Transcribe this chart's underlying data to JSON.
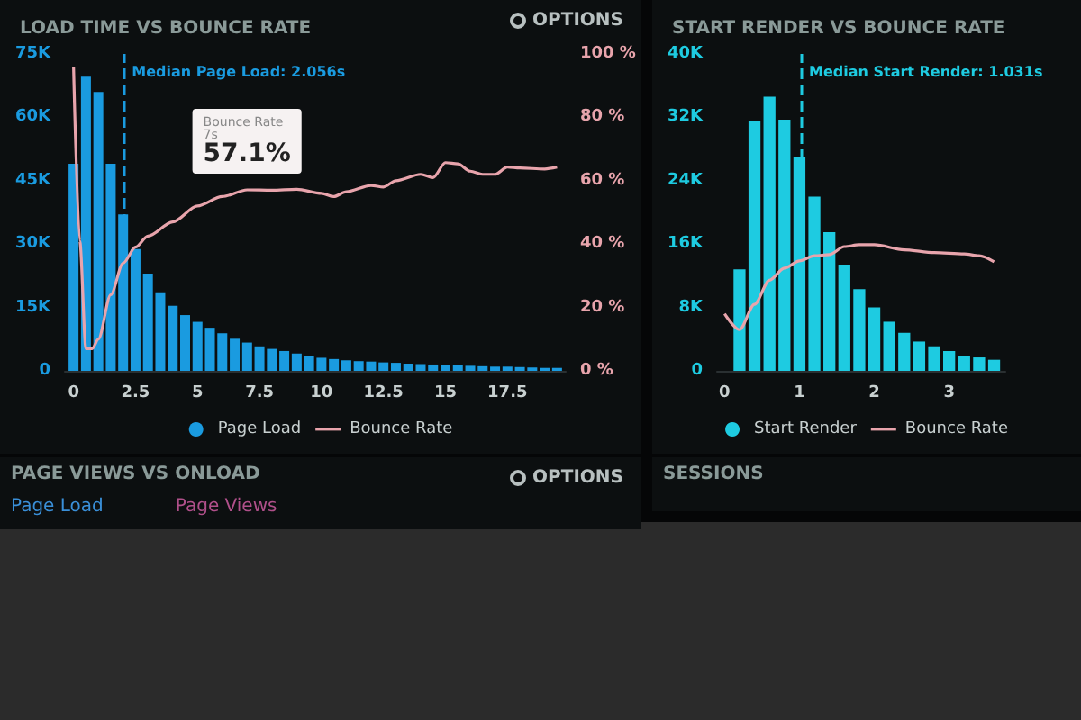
{
  "chart_data": [
    {
      "type": "bar",
      "title": "LOAD TIME VS BOUNCE RATE",
      "x": [
        0,
        0.5,
        1,
        1.5,
        2,
        2.5,
        3,
        3.5,
        4,
        4.5,
        5,
        5.5,
        6,
        6.5,
        7,
        7.5,
        8,
        8.5,
        9,
        9.5,
        10,
        10.5,
        11,
        11.5,
        12,
        12.5,
        13,
        13.5,
        14,
        14.5,
        15,
        15.5,
        16,
        16.5,
        17,
        17.5,
        18,
        18.5,
        19,
        19.5
      ],
      "series": [
        {
          "name": "Page Load",
          "color": "#1a9be0",
          "values": [
            49000,
            69600,
            66000,
            49000,
            37000,
            28800,
            23000,
            18600,
            15400,
            13200,
            11600,
            10200,
            8900,
            7600,
            6700,
            5800,
            5200,
            4700,
            4100,
            3500,
            3100,
            2800,
            2500,
            2300,
            2200,
            2000,
            1900,
            1700,
            1600,
            1500,
            1400,
            1300,
            1200,
            1100,
            1000,
            1000,
            900,
            800,
            700,
            700
          ]
        },
        {
          "name": "Bounce Rate",
          "type": "line",
          "axis": "y2",
          "color": "#e8a4ac",
          "x": [
            0,
            0.25,
            0.5,
            0.75,
            1,
            1.5,
            2,
            2.5,
            3,
            4,
            5,
            6,
            7,
            8,
            9,
            10,
            10.5,
            11,
            12,
            12.5,
            13,
            14,
            14.5,
            15,
            15.5,
            16,
            16.5,
            17,
            17.5,
            18,
            19,
            19.5
          ],
          "values": [
            96,
            41,
            7,
            7,
            10,
            24,
            34,
            39,
            42.5,
            47,
            52,
            55,
            57.1,
            57,
            57.3,
            56,
            55,
            56.5,
            58.5,
            58,
            60,
            62,
            61,
            65.7,
            65.3,
            63,
            62,
            62,
            64.3,
            64,
            63.7,
            64.3
          ]
        }
      ],
      "xlim": [
        -0.35,
        19.85
      ],
      "xticks": [
        0,
        2.5,
        5,
        7.5,
        10,
        12.5,
        15,
        17.5
      ],
      "ylim": [
        0,
        75000
      ],
      "yticks": [
        {
          "value": 0,
          "label": "0"
        },
        {
          "value": 15000,
          "label": "15K"
        },
        {
          "value": 30000,
          "label": "30K"
        },
        {
          "value": 45000,
          "label": "45K"
        },
        {
          "value": 60000,
          "label": "60K"
        },
        {
          "value": 75000,
          "label": "75K"
        }
      ],
      "y2lim": [
        0,
        100
      ],
      "y2ticks": [
        {
          "value": 0,
          "label": "0 %"
        },
        {
          "value": 20,
          "label": "20 %"
        },
        {
          "value": 40,
          "label": "40 %"
        },
        {
          "value": 60,
          "label": "60 %"
        },
        {
          "value": 80,
          "label": "80 %"
        },
        {
          "value": 100,
          "label": "100 %"
        }
      ],
      "ref_lines": [
        {
          "axis": "x",
          "value": 2.056,
          "label": "Median Page Load: 2.056s",
          "color": "#1a9be0",
          "line_style": "dashed"
        }
      ],
      "annotations": [
        "OPTIONS",
        "Bounce Rate\n7s\n57.1%"
      ],
      "legend": "bottom",
      "marker": "none"
    },
    {
      "type": "bar",
      "title": "START RENDER VS BOUNCE RATE",
      "x": [
        0.2,
        0.4,
        0.6,
        0.8,
        1,
        1.2,
        1.4,
        1.6,
        1.8,
        2,
        2.2,
        2.4,
        2.6,
        2.8,
        3,
        3.2,
        3.4,
        3.6
      ],
      "series": [
        {
          "name": "Start Render",
          "color": "#1ecbe1",
          "values": [
            12800,
            31500,
            34600,
            31700,
            27000,
            22000,
            17500,
            13400,
            10300,
            8000,
            6200,
            4800,
            3700,
            3100,
            2500,
            1900,
            1700,
            1400
          ]
        },
        {
          "name": "Bounce Rate",
          "type": "line",
          "axis": "y2",
          "color": "#e8a4ac",
          "x": [
            0,
            0.2,
            0.4,
            0.6,
            0.8,
            1,
            1.2,
            1.4,
            1.6,
            1.8,
            2,
            2.4,
            2.8,
            3.2,
            3.4,
            3.6
          ],
          "values": [
            18,
            13,
            21,
            28.6,
            32.4,
            34.7,
            36.3,
            36.7,
            39.2,
            39.8,
            39.8,
            38.2,
            37.3,
            36.9,
            36.3,
            34.4
          ]
        }
      ],
      "xlim": [
        -0.1,
        3.75
      ],
      "xticks": [
        0,
        1,
        2,
        3
      ],
      "ylim": [
        0,
        40000
      ],
      "yticks": [
        {
          "value": 0,
          "label": "0"
        },
        {
          "value": 8000,
          "label": "8K"
        },
        {
          "value": 16000,
          "label": "16K"
        },
        {
          "value": 24000,
          "label": "24K"
        },
        {
          "value": 32000,
          "label": "32K"
        },
        {
          "value": 40000,
          "label": "40K"
        }
      ],
      "y2lim": [
        0,
        100
      ],
      "ref_lines": [
        {
          "axis": "x",
          "value": 1.031,
          "label": "Median Start Render: 1.031s",
          "color": "#1ecbe1",
          "line_style": "dashed"
        }
      ],
      "legend": "bottom",
      "marker": "none"
    },
    {
      "type": "other",
      "title": "PAGE VIEWS VS ONLOAD",
      "annotations": [
        "OPTIONS"
      ],
      "series": [
        {
          "name": "Page Load",
          "color": "#3a8fd8"
        },
        {
          "name": "Page Views",
          "color": "#b0508a"
        }
      ]
    },
    {
      "type": "other",
      "title": "SESSIONS"
    }
  ]
}
